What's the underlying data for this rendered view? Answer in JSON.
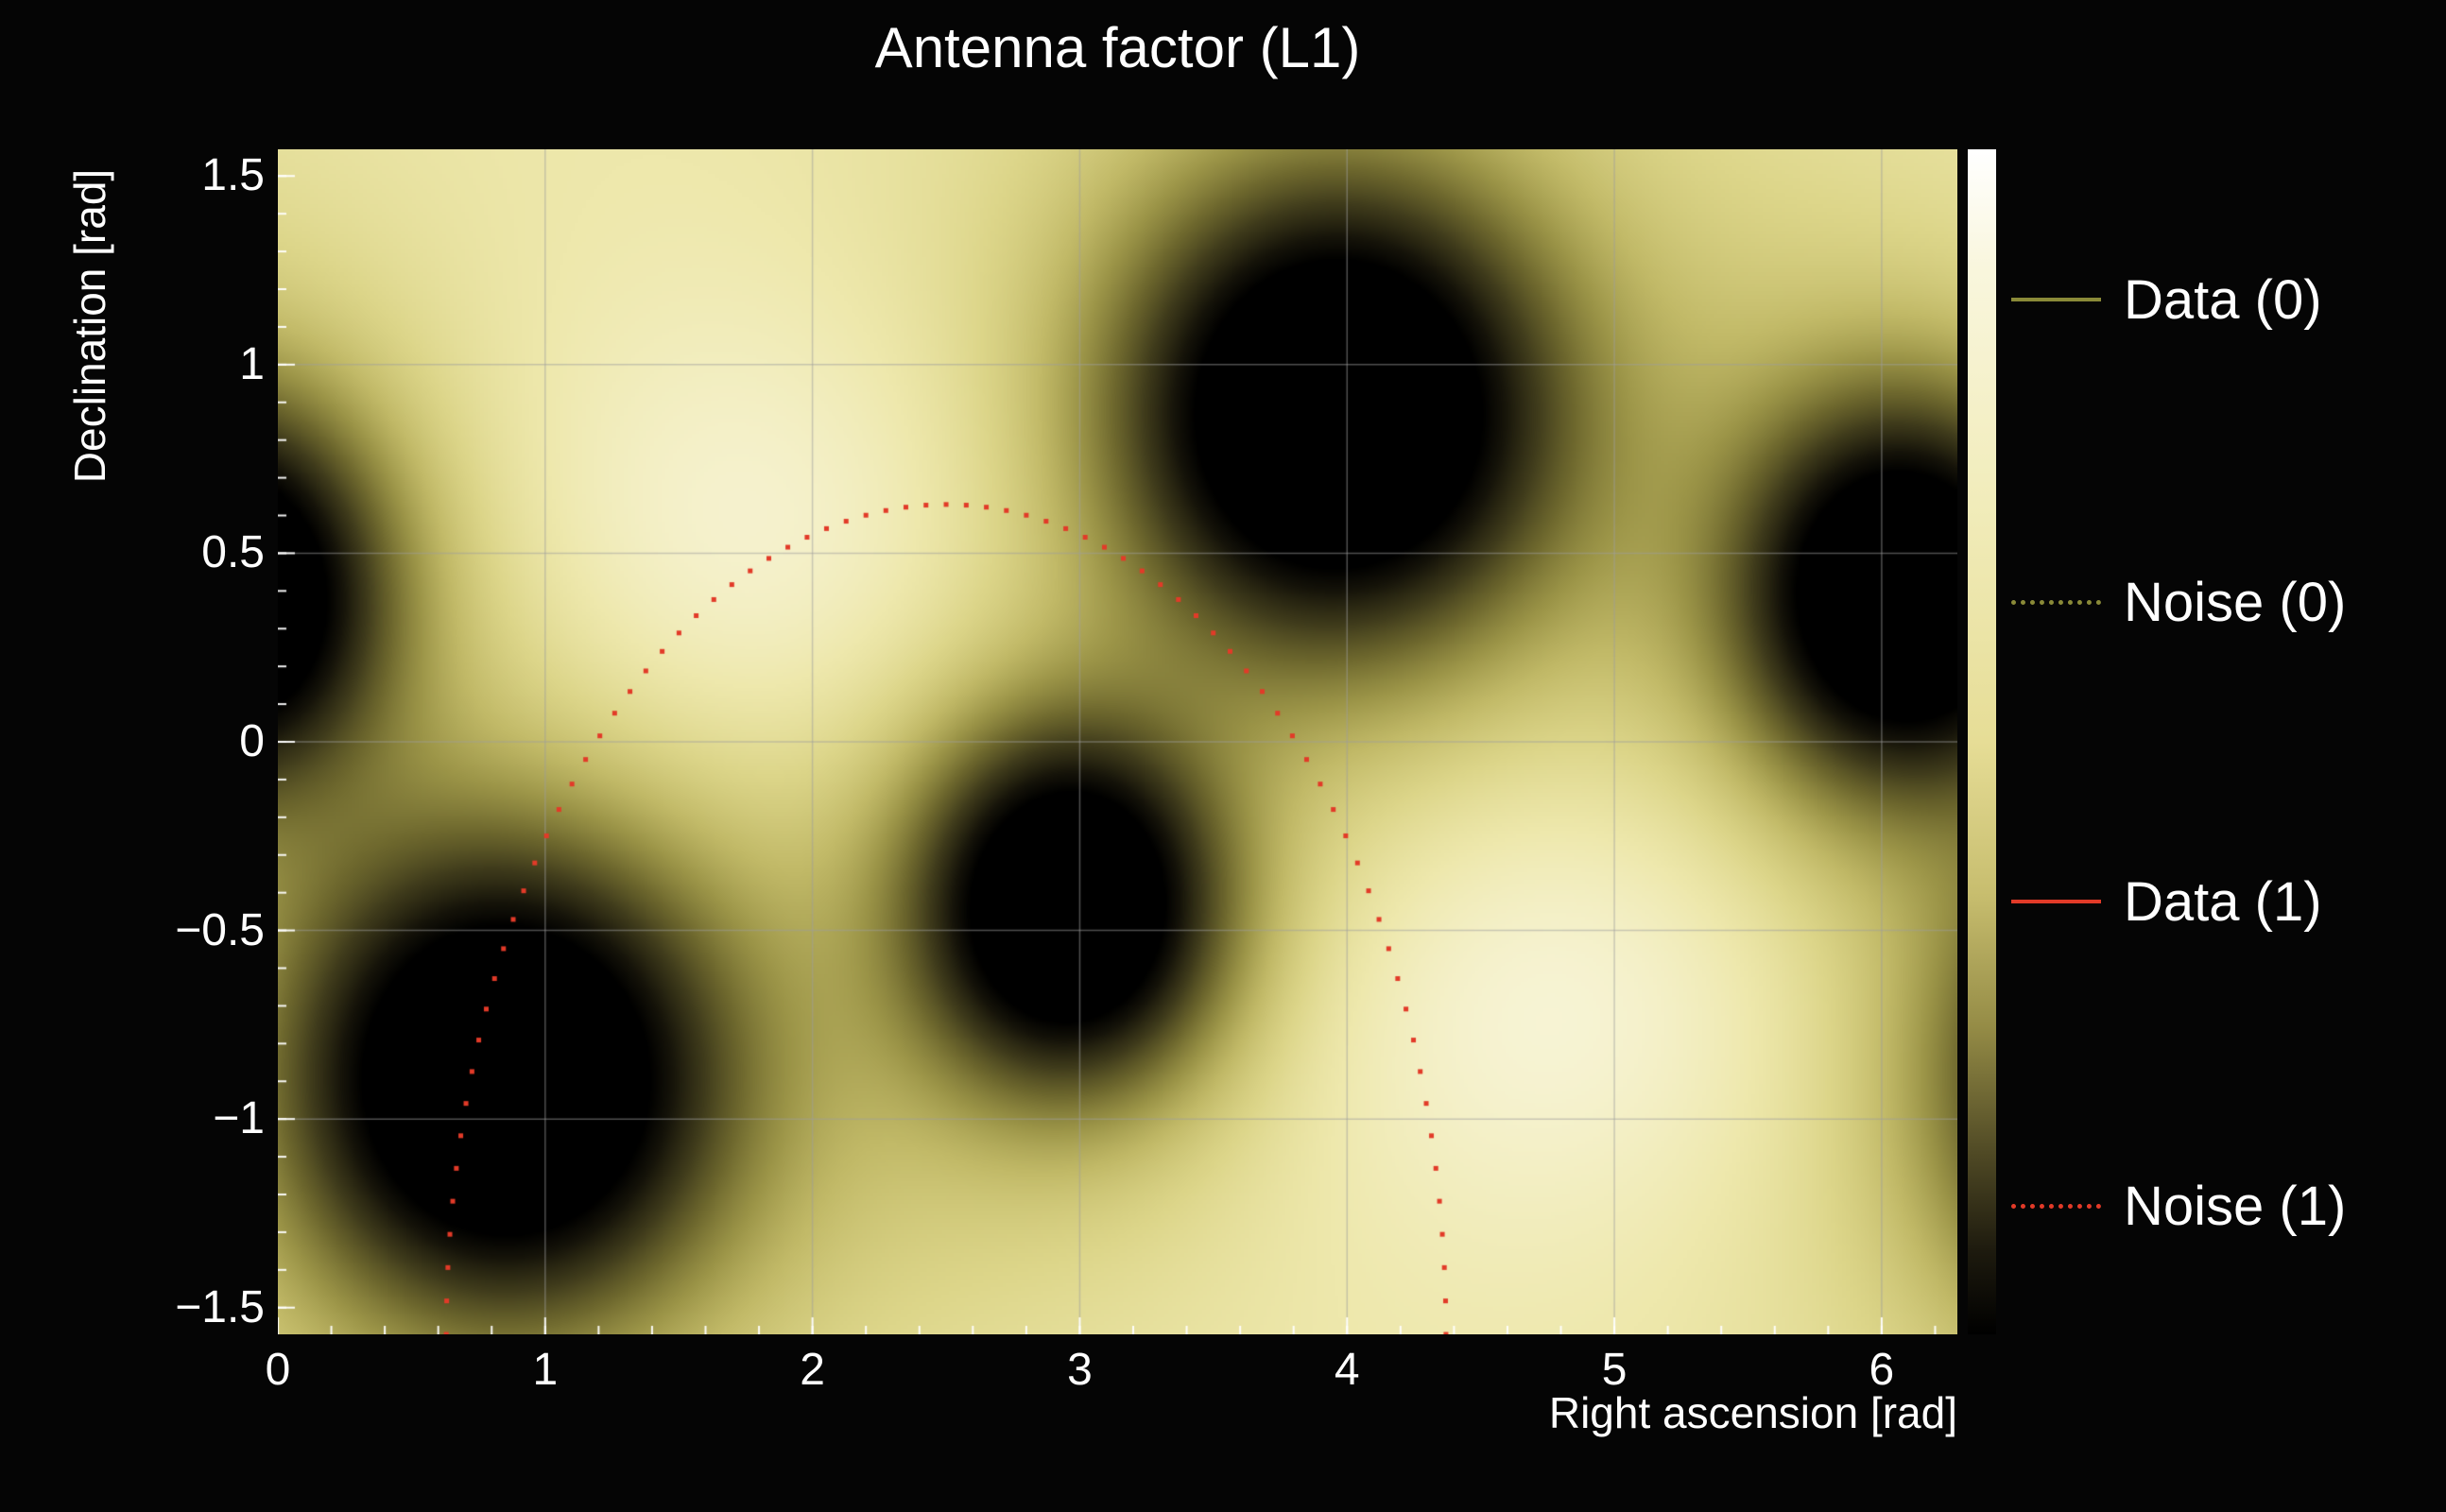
{
  "chart_data": {
    "type": "heatmap",
    "title": "Antenna factor (L1)",
    "xlabel": "Right ascension [rad]",
    "ylabel": "Declination [rad]",
    "xlim": [
      0,
      6.2832
    ],
    "ylim": [
      -1.5708,
      1.5708
    ],
    "x_ticks": [
      0,
      1,
      2,
      3,
      4,
      5,
      6
    ],
    "x_tick_labels": [
      "0",
      "1",
      "2",
      "3",
      "4",
      "5",
      "6"
    ],
    "y_ticks": [
      1.5,
      1,
      0.5,
      0,
      -0.5,
      -1,
      -1.5
    ],
    "y_tick_labels": [
      "1.5",
      "1",
      "0.5",
      "0",
      "−0.5",
      "−1",
      "−1.5"
    ],
    "grid": true,
    "legend_position": "right",
    "field": {
      "base": 0.84,
      "periodic_x": 6.2832,
      "bright_spots": [
        {
          "x": 1.9,
          "y": 0.45,
          "sx": 0.95,
          "sy": 0.5,
          "amp": 0.13
        },
        {
          "x": 4.85,
          "y": -0.6,
          "sx": 0.95,
          "sy": 0.5,
          "amp": 0.13
        }
      ],
      "dark_blobs": [
        {
          "x": 0.85,
          "y": -0.9,
          "sx": 0.5,
          "sy": 0.38,
          "amp": 1.15
        },
        {
          "x": 0.85,
          "y": -0.9,
          "sx": 1.0,
          "sy": 0.76,
          "amp": 0.22
        },
        {
          "x": 2.96,
          "y": -0.44,
          "sx": 0.36,
          "sy": 0.3,
          "amp": 1.1
        },
        {
          "x": 2.96,
          "y": -0.44,
          "sx": 0.7,
          "sy": 0.6,
          "amp": 0.18
        },
        {
          "x": 3.96,
          "y": 0.87,
          "sx": 0.5,
          "sy": 0.38,
          "amp": 1.15
        },
        {
          "x": 3.96,
          "y": 0.87,
          "sx": 1.0,
          "sy": 0.76,
          "amp": 0.22
        },
        {
          "x": 6.08,
          "y": 0.39,
          "sx": 0.38,
          "sy": 0.32,
          "amp": 1.1
        },
        {
          "x": 6.08,
          "y": 0.39,
          "sx": 0.75,
          "sy": 0.62,
          "amp": 0.18
        }
      ]
    },
    "colormap": [
      {
        "t": 0.0,
        "c": "#000000"
      },
      {
        "t": 0.12,
        "c": "#16140a"
      },
      {
        "t": 0.28,
        "c": "#403c1c"
      },
      {
        "t": 0.42,
        "c": "#6e682e"
      },
      {
        "t": 0.55,
        "c": "#9c9548"
      },
      {
        "t": 0.66,
        "c": "#c2ba68"
      },
      {
        "t": 0.76,
        "c": "#ddd68a"
      },
      {
        "t": 0.84,
        "c": "#eee8ac"
      },
      {
        "t": 0.93,
        "c": "#f8f5d8"
      },
      {
        "t": 1.0,
        "c": "#fffdf0"
      }
    ],
    "colorbar": {
      "stops": [
        {
          "p": 0,
          "c": "#ffffff"
        },
        {
          "p": 10,
          "c": "#f9f6dd"
        },
        {
          "p": 30,
          "c": "#f1ecba"
        },
        {
          "p": 50,
          "c": "#e6dd96"
        },
        {
          "p": 63,
          "c": "#c7bd6e"
        },
        {
          "p": 74,
          "c": "#958c46"
        },
        {
          "p": 85,
          "c": "#4e4824"
        },
        {
          "p": 93,
          "c": "#1d1a0e"
        },
        {
          "p": 100,
          "c": "#000000"
        }
      ]
    },
    "noise_curve": {
      "shape": "half-ellipse",
      "cx": 2.5,
      "cy": -1.5708,
      "rx": 1.87,
      "ry": 2.2,
      "points": 78,
      "color": "#e23a28",
      "dot_size": 5
    },
    "legend": [
      {
        "label": "Data (0)",
        "color": "#8a8a38",
        "style": "solid"
      },
      {
        "label": "Noise (0)",
        "color": "#8a8a38",
        "style": "dotted"
      },
      {
        "label": "Data (1)",
        "color": "#e23a28",
        "style": "solid"
      },
      {
        "label": "Noise (1)",
        "color": "#e23a28",
        "style": "dotted"
      }
    ],
    "grid_color": "#9e9e9e",
    "tick_color": "#ffffff",
    "background": "#050505"
  }
}
